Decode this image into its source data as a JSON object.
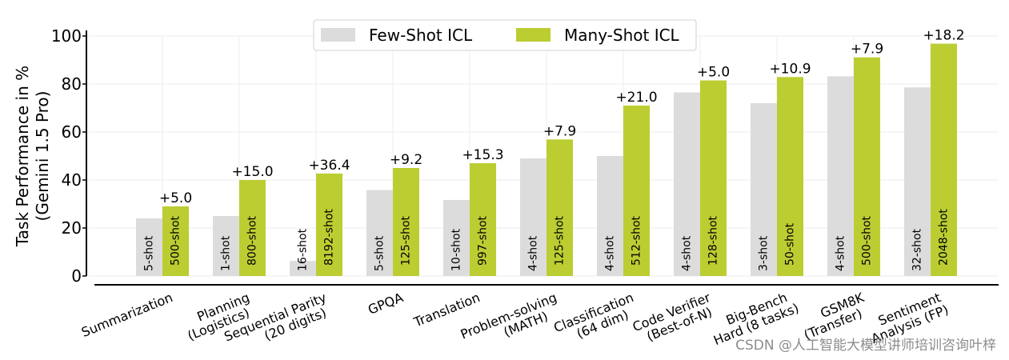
{
  "chart_data": {
    "type": "bar",
    "ylabel_lines": [
      "Task Performance in %",
      "(Gemini 1.5 Pro)"
    ],
    "ylim": [
      0,
      100
    ],
    "yticks": [
      0,
      20,
      40,
      60,
      80,
      100
    ],
    "grid": true,
    "legend_placement": "top-center",
    "categories": [
      [
        "Summarization"
      ],
      [
        "Planning",
        "(Logistics)"
      ],
      [
        "Sequential Parity",
        "(20 digits)"
      ],
      [
        "GPQA"
      ],
      [
        "Translation"
      ],
      [
        "Problem-solving",
        "(MATH)"
      ],
      [
        "Classification",
        "(64 dim)"
      ],
      [
        "Code Verifier",
        "(Best-of-N)"
      ],
      [
        "Big-Bench",
        "Hard (8 tasks)"
      ],
      [
        "GSM8K",
        "(Transfer)"
      ],
      [
        "Sentiment",
        "Analysis (FP)"
      ]
    ],
    "series": [
      {
        "name": "Few-Shot ICL",
        "color": "#dcdcdc",
        "values": [
          24.0,
          25.0,
          6.3,
          35.8,
          31.7,
          49.0,
          50.0,
          76.5,
          72.0,
          83.2,
          78.6
        ],
        "shots": [
          "5-shot",
          "1-shot",
          "16-shot",
          "5-shot",
          "10-shot",
          "4-shot",
          "4-shot",
          "4-shot",
          "3-shot",
          "4-shot",
          "32-shot"
        ]
      },
      {
        "name": "Many-Shot ICL",
        "color": "#bccd32",
        "values": [
          29.0,
          40.0,
          42.7,
          45.0,
          47.0,
          56.9,
          71.0,
          81.5,
          82.9,
          91.1,
          96.8
        ],
        "shots": [
          "500-shot",
          "800-shot",
          "8192-shot",
          "125-shot",
          "997-shot",
          "125-shot",
          "512-shot",
          "128-shot",
          "50-shot",
          "500-shot",
          "2048-shot"
        ]
      }
    ],
    "annotations": [
      "+5.0",
      "+15.0",
      "+36.4",
      "+9.2",
      "+15.3",
      "+7.9",
      "+21.0",
      "+5.0",
      "+10.9",
      "+7.9",
      "+18.2"
    ]
  },
  "watermark": "CSDN @人工智能大模型讲师培训咨询叶梓"
}
